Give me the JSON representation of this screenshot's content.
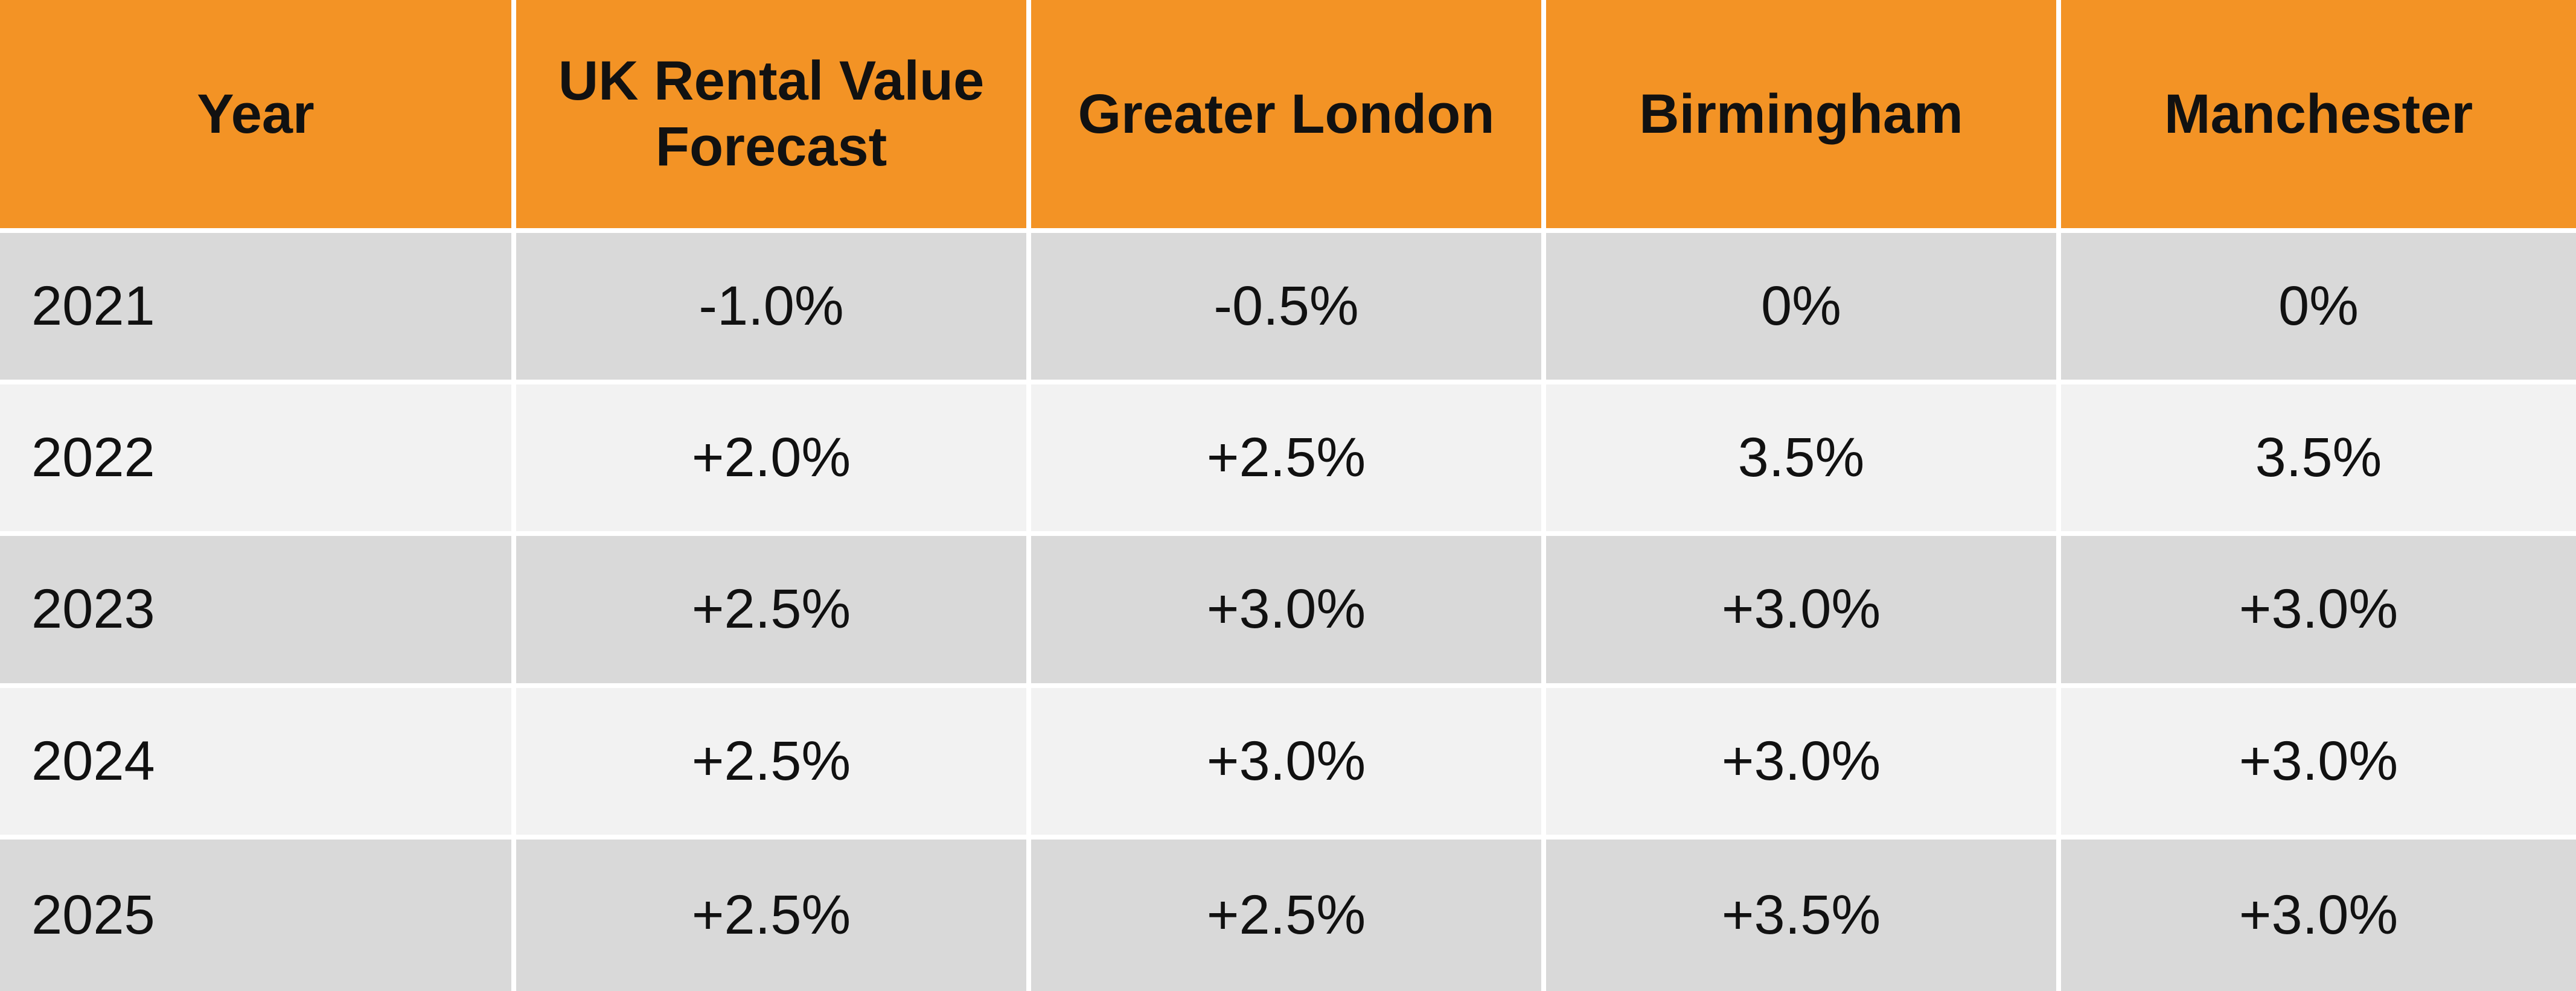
{
  "table": {
    "headers": [
      "Year",
      "UK Rental Value Forecast",
      "Greater London",
      "Birmingham",
      "Manchester"
    ],
    "rows": [
      [
        "2021",
        "-1.0%",
        "-0.5%",
        "0%",
        "0%"
      ],
      [
        "2022",
        "+2.0%",
        "+2.5%",
        "3.5%",
        "3.5%"
      ],
      [
        "2023",
        "+2.5%",
        "+3.0%",
        "+3.0%",
        "+3.0%"
      ],
      [
        "2024",
        "+2.5%",
        "+3.0%",
        "+3.0%",
        "+3.0%"
      ],
      [
        "2025",
        "+2.5%",
        "+2.5%",
        "+3.5%",
        "+3.0%"
      ]
    ]
  },
  "colors": {
    "header_bg": "#f39325",
    "row_dark": "#d9d9d9",
    "row_light": "#f2f2f2",
    "text": "#111111",
    "gridline": "#ffffff"
  }
}
